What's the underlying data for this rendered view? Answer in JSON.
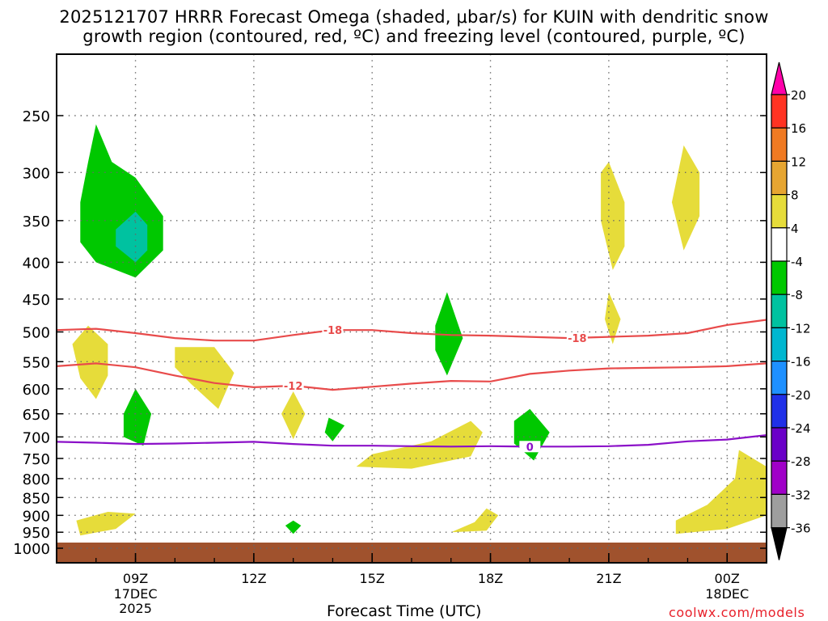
{
  "title": {
    "line1": "2025121707 HRRR Forecast Omega (shaded, μbar/s) for KUIN with dendritic snow",
    "line2": "growth region (contoured, red, ºC) and freezing level (contoured, purple, ºC)"
  },
  "credit": "coolwx.com/models",
  "chart_data": {
    "type": "heatmap",
    "title": "2025121707 HRRR Forecast Omega (shaded, μbar/s) for KUIN with dendritic snow growth region (contoured, red, ºC) and freezing level (contoured, purple, ºC)",
    "xlabel": "Forecast Time (UTC)",
    "ylabel": "",
    "x_range_hours_utc": [
      7.0,
      25.0
    ],
    "x_ticks": [
      {
        "hour": 9,
        "label": "09Z",
        "sublabel": [
          "17DEC",
          "2025"
        ]
      },
      {
        "hour": 12,
        "label": "12Z"
      },
      {
        "hour": 15,
        "label": "15Z"
      },
      {
        "hour": 18,
        "label": "18Z"
      },
      {
        "hour": 21,
        "label": "21Z"
      },
      {
        "hour": 24,
        "label": "00Z",
        "sublabel": [
          "18DEC"
        ]
      }
    ],
    "y_axis": {
      "log_scale": true,
      "inverted": true,
      "range_hpa": [
        1000,
        200
      ],
      "ticks": [
        250,
        300,
        350,
        400,
        450,
        500,
        550,
        600,
        650,
        700,
        750,
        800,
        850,
        900,
        950,
        1000
      ]
    },
    "grid": true,
    "colorbar": {
      "placement": "right",
      "labels": [
        "20",
        "16",
        "12",
        "8",
        "4",
        "-4",
        "-8",
        "-12",
        "-16",
        "-20",
        "-24",
        "-28",
        "-32",
        "-36"
      ],
      "colors": [
        "#ff00aa",
        "#ff3322",
        "#f07a22",
        "#e6a531",
        "#e6dc3a",
        "#ffffff",
        "#00c800",
        "#00c2a0",
        "#00b7d0",
        "#1e90ff",
        "#2030e8",
        "#6a00c8",
        "#a000c8",
        "#9e9e9e",
        "#000000"
      ]
    },
    "contours": [
      {
        "label": "-18",
        "color": "#e84b4b",
        "points": [
          [
            7.0,
            497
          ],
          [
            8.0,
            495
          ],
          [
            9.0,
            502
          ],
          [
            10.0,
            510
          ],
          [
            11.0,
            514
          ],
          [
            12.0,
            514
          ],
          [
            13.0,
            505
          ],
          [
            14.0,
            497
          ],
          [
            15.0,
            497
          ],
          [
            16.0,
            502
          ],
          [
            17.0,
            505
          ],
          [
            18.0,
            506
          ],
          [
            19.0,
            508
          ],
          [
            20.0,
            510
          ],
          [
            21.0,
            508
          ],
          [
            22.0,
            506
          ],
          [
            23.0,
            502
          ],
          [
            24.0,
            489
          ],
          [
            25.0,
            481
          ]
        ]
      },
      {
        "label": "-12",
        "color": "#e84b4b",
        "points": [
          [
            7.0,
            558
          ],
          [
            8.0,
            553
          ],
          [
            9.0,
            560
          ],
          [
            10.0,
            575
          ],
          [
            11.0,
            589
          ],
          [
            12.0,
            597
          ],
          [
            13.0,
            594
          ],
          [
            14.0,
            602
          ],
          [
            15.0,
            596
          ],
          [
            16.0,
            590
          ],
          [
            17.0,
            585
          ],
          [
            18.0,
            586
          ],
          [
            19.0,
            572
          ],
          [
            20.0,
            566
          ],
          [
            21.0,
            562
          ],
          [
            22.0,
            561
          ],
          [
            23.0,
            560
          ],
          [
            24.0,
            558
          ],
          [
            25.0,
            553
          ]
        ]
      },
      {
        "label": "0",
        "color": "#8b10c8",
        "points": [
          [
            7.0,
            711
          ],
          [
            8.0,
            713
          ],
          [
            9.0,
            716
          ],
          [
            10.0,
            715
          ],
          [
            11.0,
            713
          ],
          [
            12.0,
            711
          ],
          [
            13.0,
            716
          ],
          [
            14.0,
            720
          ],
          [
            15.0,
            720
          ],
          [
            16.0,
            721
          ],
          [
            17.0,
            722
          ],
          [
            18.0,
            721
          ],
          [
            19.0,
            722
          ],
          [
            20.0,
            722
          ],
          [
            21.0,
            721
          ],
          [
            22.0,
            718
          ],
          [
            23.0,
            710
          ],
          [
            24.0,
            706
          ],
          [
            25.0,
            696
          ]
        ]
      }
    ],
    "shaded_regions": [
      {
        "color": "#00c800",
        "band": "-8 to -4",
        "points": [
          [
            8.0,
            257
          ],
          [
            8.4,
            290
          ],
          [
            9.0,
            305
          ],
          [
            9.7,
            345
          ],
          [
            9.7,
            385
          ],
          [
            9.0,
            420
          ],
          [
            8.0,
            400
          ],
          [
            7.6,
            375
          ],
          [
            7.6,
            330
          ],
          [
            7.8,
            290
          ]
        ]
      },
      {
        "color": "#00c2a0",
        "band": "-12 to -8",
        "points": [
          [
            9.0,
            340
          ],
          [
            9.3,
            355
          ],
          [
            9.3,
            385
          ],
          [
            9.0,
            400
          ],
          [
            8.5,
            380
          ],
          [
            8.5,
            360
          ]
        ]
      },
      {
        "color": "#e6dc3a",
        "band": "4 to 8",
        "points": [
          [
            7.4,
            520
          ],
          [
            7.8,
            490
          ],
          [
            8.3,
            520
          ],
          [
            8.3,
            575
          ],
          [
            8.0,
            620
          ],
          [
            7.6,
            580
          ]
        ]
      },
      {
        "color": "#e6dc3a",
        "band": "4 to 8",
        "points": [
          [
            10.0,
            525
          ],
          [
            11.0,
            525
          ],
          [
            11.5,
            570
          ],
          [
            11.1,
            640
          ],
          [
            10.4,
            590
          ],
          [
            10.0,
            560
          ]
        ]
      },
      {
        "color": "#00c800",
        "band": "-8 to -4",
        "points": [
          [
            9.0,
            600
          ],
          [
            9.4,
            650
          ],
          [
            9.2,
            720
          ],
          [
            8.7,
            700
          ],
          [
            8.7,
            650
          ]
        ]
      },
      {
        "color": "#e6dc3a",
        "band": "4 to 8",
        "points": [
          [
            13.0,
            605
          ],
          [
            13.3,
            650
          ],
          [
            13.0,
            705
          ],
          [
            12.7,
            650
          ]
        ]
      },
      {
        "color": "#00c800",
        "band": "-8 to -4",
        "points": [
          [
            13.9,
            658
          ],
          [
            14.3,
            675
          ],
          [
            14.0,
            710
          ],
          [
            13.8,
            690
          ]
        ]
      },
      {
        "color": "#00c800",
        "band": "-8 to -4",
        "points": [
          [
            16.9,
            440
          ],
          [
            17.3,
            510
          ],
          [
            16.9,
            575
          ],
          [
            16.6,
            530
          ],
          [
            16.6,
            490
          ]
        ]
      },
      {
        "color": "#e6dc3a",
        "band": "4 to 8",
        "points": [
          [
            15.0,
            740
          ],
          [
            16.5,
            710
          ],
          [
            17.5,
            665
          ],
          [
            17.8,
            690
          ],
          [
            17.5,
            745
          ],
          [
            16.0,
            775
          ],
          [
            14.6,
            770
          ]
        ]
      },
      {
        "color": "#00c800",
        "band": "-8 to -4",
        "points": [
          [
            19.0,
            640
          ],
          [
            19.5,
            690
          ],
          [
            19.1,
            755
          ],
          [
            18.6,
            715
          ],
          [
            18.6,
            665
          ]
        ]
      },
      {
        "color": "#e6dc3a",
        "band": "4 to 8",
        "points": [
          [
            21.0,
            290
          ],
          [
            21.4,
            330
          ],
          [
            21.4,
            380
          ],
          [
            21.1,
            410
          ],
          [
            20.8,
            350
          ],
          [
            20.8,
            300
          ]
        ]
      },
      {
        "color": "#e6dc3a",
        "band": "4 to 8",
        "points": [
          [
            21.0,
            440
          ],
          [
            21.3,
            480
          ],
          [
            21.1,
            520
          ],
          [
            20.9,
            480
          ]
        ]
      },
      {
        "color": "#e6dc3a",
        "band": "4 to 8",
        "points": [
          [
            22.9,
            275
          ],
          [
            23.3,
            300
          ],
          [
            23.3,
            345
          ],
          [
            22.9,
            385
          ],
          [
            22.6,
            330
          ]
        ]
      },
      {
        "color": "#e6dc3a",
        "band": "4 to 8",
        "points": [
          [
            24.3,
            730
          ],
          [
            25.0,
            770
          ],
          [
            25.0,
            900
          ],
          [
            24.0,
            940
          ],
          [
            22.7,
            955
          ],
          [
            22.7,
            915
          ],
          [
            23.5,
            870
          ],
          [
            24.2,
            800
          ]
        ]
      },
      {
        "color": "#e6dc3a",
        "band": "4 to 8",
        "points": [
          [
            7.5,
            915
          ],
          [
            8.3,
            890
          ],
          [
            9.0,
            895
          ],
          [
            8.5,
            940
          ],
          [
            7.6,
            960
          ]
        ]
      },
      {
        "color": "#e6dc3a",
        "band": "4 to 8",
        "points": [
          [
            17.9,
            880
          ],
          [
            18.2,
            900
          ],
          [
            17.9,
            945
          ],
          [
            17.0,
            950
          ],
          [
            17.6,
            920
          ]
        ]
      },
      {
        "color": "#00c800",
        "band": "-8 to -4",
        "points": [
          [
            13.0,
            915
          ],
          [
            13.2,
            930
          ],
          [
            13.0,
            955
          ],
          [
            12.8,
            930
          ]
        ]
      }
    ],
    "ground": {
      "color": "#a0522d",
      "pressure_hpa_top": 970
    }
  }
}
